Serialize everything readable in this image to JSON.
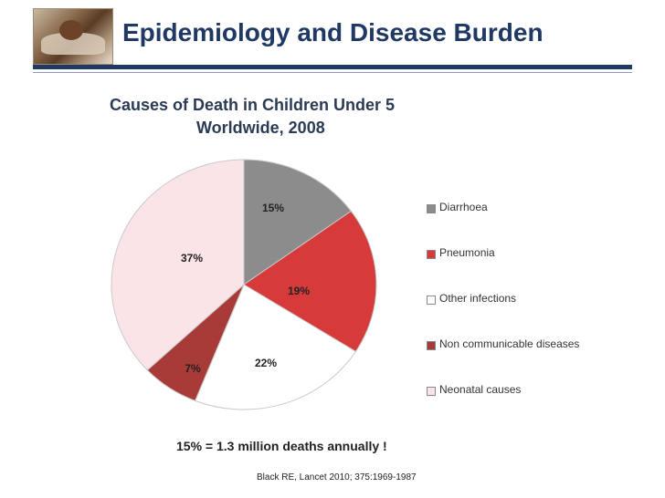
{
  "slide": {
    "title": "Epidemiology and Disease Burden",
    "footnote": "15%  = 1.3 million deaths annually !",
    "citation": "Black RE, Lancet 2010; 375:1969-1987"
  },
  "chart_data": {
    "type": "pie",
    "title_line1": "Causes of Death in Children Under 5",
    "title_line2": "Worldwide, 2008",
    "categories": [
      "Diarrhoea",
      "Pneumonia",
      "Other infections",
      "Non communicable diseases",
      "Neonatal causes"
    ],
    "values": [
      15,
      19,
      22,
      7,
      37
    ],
    "labels": [
      "15%",
      "19%",
      "22%",
      "7%",
      "37%"
    ],
    "colors": [
      "#8c8c8c",
      "#d63a3a",
      "#ffffff",
      "#a83a38",
      "#fbe4e8"
    ],
    "legend_position": "right"
  }
}
